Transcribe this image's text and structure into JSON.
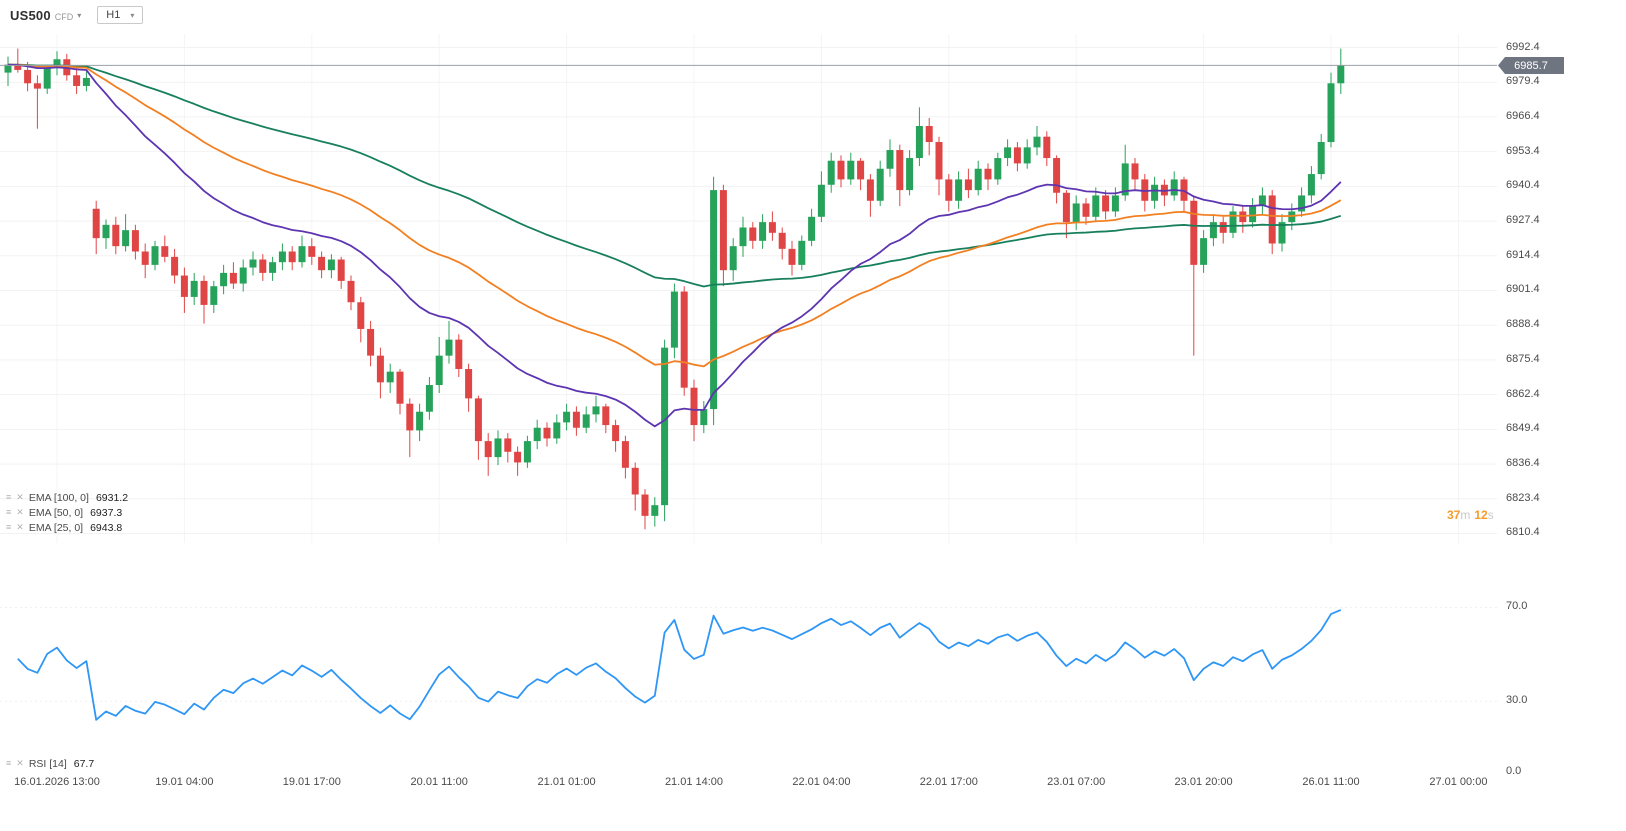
{
  "topbar": {
    "symbol": "US500",
    "symbol_type": "CFD",
    "timeframe": "H1"
  },
  "price_axis": {
    "current_price": "6985.7"
  },
  "countdown": {
    "minutes": "37",
    "minutes_unit": "m",
    "seconds": "12",
    "seconds_unit": "s"
  },
  "indicators": {
    "ema": [
      {
        "label": "EMA [100, 0]",
        "value": "6931.2"
      },
      {
        "label": "EMA [50, 0]",
        "value": "6937.3"
      },
      {
        "label": "EMA [25, 0]",
        "value": "6943.8"
      }
    ],
    "rsi": {
      "label": "RSI [14]",
      "value": "67.7"
    }
  },
  "chart_data": {
    "type": "candlestick",
    "symbol": "US500",
    "timeframe": "H1",
    "title": "US500 CFD H1 with EMA 25/50/100 and RSI 14",
    "y_axis": {
      "max": 6992.4,
      "min": 6810.4,
      "tick_step": 13.0
    },
    "price_ticks": [
      "6992.4",
      "6979.4",
      "6966.4",
      "6953.4",
      "6940.4",
      "6927.4",
      "6914.4",
      "6901.4",
      "6888.4",
      "6875.4",
      "6862.4",
      "6849.4",
      "6836.4",
      "6823.4",
      "6810.4"
    ],
    "colors": {
      "up": "#27a25a",
      "down": "#e04545",
      "price_line": "#9aa0a6",
      "badge_bg": "#6f7580",
      "grid": "#f2f2f2"
    },
    "overlays": [
      {
        "name": "EMA",
        "period": 25,
        "color": "#5d35b0",
        "last_value": 6943.8
      },
      {
        "name": "EMA",
        "period": 50,
        "color": "#f28022",
        "last_value": 6937.3
      },
      {
        "name": "EMA",
        "period": 100,
        "color": "#177f5c",
        "last_value": 6931.2
      }
    ],
    "oscillator": {
      "name": "RSI",
      "period": 14,
      "color": "#2e96f5",
      "last_value": 67.7,
      "levels": [
        70,
        30,
        0
      ]
    },
    "x_labels": [
      {
        "index": 5,
        "label": "16.01.2026 13:00"
      },
      {
        "index": 18,
        "label": "19.01 04:00"
      },
      {
        "index": 31,
        "label": "19.01 17:00"
      },
      {
        "index": 44,
        "label": "20.01 11:00"
      },
      {
        "index": 57,
        "label": "21.01 01:00"
      },
      {
        "index": 70,
        "label": "21.01 14:00"
      },
      {
        "index": 83,
        "label": "22.01 04:00"
      },
      {
        "index": 96,
        "label": "22.01 17:00"
      },
      {
        "index": 109,
        "label": "23.01 07:00"
      },
      {
        "index": 122,
        "label": "23.01 20:00"
      },
      {
        "index": 135,
        "label": "26.01 11:00"
      },
      {
        "index": 148,
        "label": "27.01 00:00"
      }
    ],
    "ohlc": [
      [
        6983,
        6989,
        6978,
        6986
      ],
      [
        6986,
        6992,
        6983,
        6984
      ],
      [
        6984,
        6987,
        6976,
        6979
      ],
      [
        6979,
        6982,
        6962,
        6977
      ],
      [
        6977,
        6986,
        6975,
        6985
      ],
      [
        6985,
        6991,
        6982,
        6988
      ],
      [
        6988,
        6990,
        6980,
        6982
      ],
      [
        6982,
        6985,
        6975,
        6978
      ],
      [
        6978,
        6984,
        6976,
        6981
      ],
      [
        6932,
        6935,
        6915,
        6921
      ],
      [
        6921,
        6928,
        6917,
        6926
      ],
      [
        6926,
        6929,
        6915,
        6918
      ],
      [
        6918,
        6930,
        6916,
        6924
      ],
      [
        6924,
        6926,
        6913,
        6916
      ],
      [
        6916,
        6919,
        6906,
        6911
      ],
      [
        6911,
        6920,
        6909,
        6918
      ],
      [
        6918,
        6922,
        6912,
        6914
      ],
      [
        6914,
        6917,
        6904,
        6907
      ],
      [
        6907,
        6910,
        6893,
        6899
      ],
      [
        6899,
        6908,
        6896,
        6905
      ],
      [
        6905,
        6907,
        6889,
        6896
      ],
      [
        6896,
        6905,
        6893,
        6903
      ],
      [
        6903,
        6911,
        6900,
        6908
      ],
      [
        6908,
        6912,
        6902,
        6904
      ],
      [
        6904,
        6913,
        6901,
        6910
      ],
      [
        6910,
        6916,
        6907,
        6913
      ],
      [
        6913,
        6915,
        6905,
        6908
      ],
      [
        6908,
        6914,
        6905,
        6912
      ],
      [
        6912,
        6919,
        6909,
        6916
      ],
      [
        6916,
        6918,
        6909,
        6912
      ],
      [
        6912,
        6922,
        6910,
        6918
      ],
      [
        6918,
        6921,
        6911,
        6914
      ],
      [
        6914,
        6916,
        6906,
        6909
      ],
      [
        6909,
        6915,
        6906,
        6913
      ],
      [
        6913,
        6914,
        6902,
        6905
      ],
      [
        6905,
        6907,
        6894,
        6897
      ],
      [
        6897,
        6899,
        6882,
        6887
      ],
      [
        6887,
        6890,
        6873,
        6877
      ],
      [
        6877,
        6880,
        6861,
        6867
      ],
      [
        6867,
        6874,
        6863,
        6871
      ],
      [
        6871,
        6872,
        6855,
        6859
      ],
      [
        6859,
        6861,
        6839,
        6849
      ],
      [
        6849,
        6859,
        6845,
        6856
      ],
      [
        6856,
        6869,
        6853,
        6866
      ],
      [
        6866,
        6884,
        6863,
        6877
      ],
      [
        6877,
        6890,
        6874,
        6883
      ],
      [
        6883,
        6885,
        6869,
        6872
      ],
      [
        6872,
        6874,
        6856,
        6861
      ],
      [
        6861,
        6862,
        6838,
        6845
      ],
      [
        6845,
        6848,
        6832,
        6839
      ],
      [
        6839,
        6849,
        6836,
        6846
      ],
      [
        6846,
        6848,
        6837,
        6841
      ],
      [
        6841,
        6843,
        6832,
        6837
      ],
      [
        6837,
        6847,
        6835,
        6845
      ],
      [
        6845,
        6853,
        6842,
        6850
      ],
      [
        6850,
        6852,
        6843,
        6846
      ],
      [
        6846,
        6855,
        6844,
        6852
      ],
      [
        6852,
        6859,
        6849,
        6856
      ],
      [
        6856,
        6858,
        6847,
        6850
      ],
      [
        6850,
        6858,
        6848,
        6855
      ],
      [
        6855,
        6862,
        6852,
        6858
      ],
      [
        6858,
        6859,
        6848,
        6851
      ],
      [
        6851,
        6853,
        6841,
        6845
      ],
      [
        6845,
        6847,
        6831,
        6835
      ],
      [
        6835,
        6837,
        6819,
        6825
      ],
      [
        6825,
        6827,
        6812,
        6817
      ],
      [
        6817,
        6824,
        6813,
        6821
      ],
      [
        6821,
        6883,
        6815,
        6880
      ],
      [
        6880,
        6904,
        6876,
        6901
      ],
      [
        6901,
        6903,
        6862,
        6865
      ],
      [
        6865,
        6868,
        6845,
        6851
      ],
      [
        6851,
        6860,
        6848,
        6857
      ],
      [
        6857,
        6944,
        6851,
        6939
      ],
      [
        6939,
        6941,
        6903,
        6909
      ],
      [
        6909,
        6921,
        6905,
        6918
      ],
      [
        6918,
        6929,
        6914,
        6925
      ],
      [
        6925,
        6927,
        6917,
        6920
      ],
      [
        6920,
        6930,
        6917,
        6927
      ],
      [
        6927,
        6931,
        6920,
        6923
      ],
      [
        6923,
        6925,
        6913,
        6917
      ],
      [
        6917,
        6920,
        6907,
        6911
      ],
      [
        6911,
        6922,
        6909,
        6920
      ],
      [
        6920,
        6932,
        6918,
        6929
      ],
      [
        6929,
        6946,
        6927,
        6941
      ],
      [
        6941,
        6953,
        6938,
        6950
      ],
      [
        6950,
        6952,
        6940,
        6943
      ],
      [
        6943,
        6953,
        6941,
        6950
      ],
      [
        6950,
        6951,
        6939,
        6943
      ],
      [
        6943,
        6945,
        6929,
        6935
      ],
      [
        6935,
        6950,
        6933,
        6947
      ],
      [
        6947,
        6958,
        6944,
        6954
      ],
      [
        6954,
        6956,
        6933,
        6939
      ],
      [
        6939,
        6954,
        6937,
        6951
      ],
      [
        6951,
        6970,
        6948,
        6963
      ],
      [
        6963,
        6966,
        6952,
        6957
      ],
      [
        6957,
        6959,
        6937,
        6943
      ],
      [
        6943,
        6945,
        6931,
        6935
      ],
      [
        6935,
        6946,
        6932,
        6943
      ],
      [
        6943,
        6947,
        6936,
        6939
      ],
      [
        6939,
        6950,
        6937,
        6947
      ],
      [
        6947,
        6949,
        6939,
        6943
      ],
      [
        6943,
        6953,
        6941,
        6951
      ],
      [
        6951,
        6958,
        6948,
        6955
      ],
      [
        6955,
        6957,
        6946,
        6949
      ],
      [
        6949,
        6958,
        6947,
        6955
      ],
      [
        6955,
        6963,
        6952,
        6959
      ],
      [
        6959,
        6961,
        6948,
        6951
      ],
      [
        6951,
        6952,
        6934,
        6938
      ],
      [
        6938,
        6939,
        6921,
        6927
      ],
      [
        6927,
        6937,
        6924,
        6934
      ],
      [
        6934,
        6936,
        6926,
        6929
      ],
      [
        6929,
        6940,
        6927,
        6937
      ],
      [
        6937,
        6939,
        6928,
        6931
      ],
      [
        6931,
        6940,
        6929,
        6937
      ],
      [
        6937,
        6956,
        6935,
        6949
      ],
      [
        6949,
        6951,
        6939,
        6943
      ],
      [
        6943,
        6945,
        6931,
        6935
      ],
      [
        6935,
        6944,
        6932,
        6941
      ],
      [
        6941,
        6943,
        6933,
        6937
      ],
      [
        6937,
        6946,
        6935,
        6943
      ],
      [
        6943,
        6944,
        6931,
        6935
      ],
      [
        6935,
        6937,
        6877,
        6911
      ],
      [
        6911,
        6924,
        6908,
        6921
      ],
      [
        6921,
        6930,
        6918,
        6927
      ],
      [
        6927,
        6929,
        6919,
        6923
      ],
      [
        6923,
        6933,
        6921,
        6931
      ],
      [
        6931,
        6933,
        6923,
        6927
      ],
      [
        6927,
        6936,
        6925,
        6933
      ],
      [
        6933,
        6940,
        6930,
        6937
      ],
      [
        6937,
        6939,
        6915,
        6919
      ],
      [
        6919,
        6930,
        6916,
        6927
      ],
      [
        6927,
        6934,
        6924,
        6931
      ],
      [
        6931,
        6940,
        6929,
        6937
      ],
      [
        6937,
        6948,
        6934,
        6945
      ],
      [
        6945,
        6960,
        6943,
        6957
      ],
      [
        6957,
        6983,
        6955,
        6979
      ],
      [
        6979,
        6992,
        6975,
        6985.7
      ]
    ]
  }
}
